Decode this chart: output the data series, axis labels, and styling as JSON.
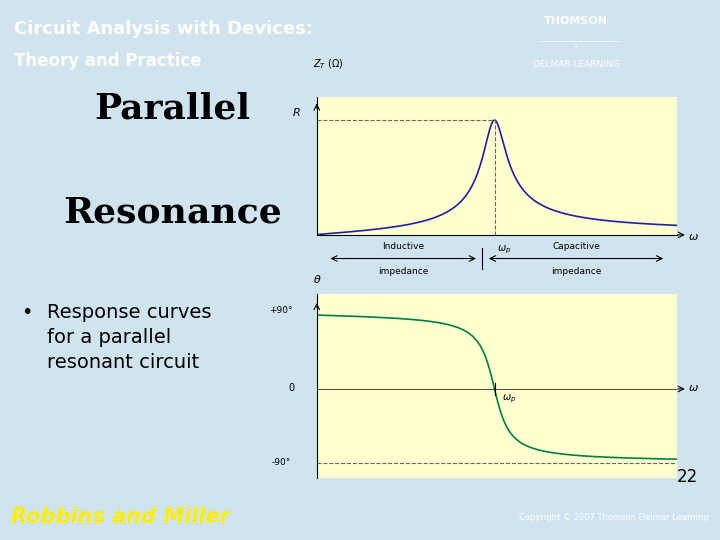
{
  "slide_bg": "#d0e4f0",
  "header_bg_left": "#2255cc",
  "header_bg_right": "#4488ee",
  "footer_bg": "#3366bb",
  "title_line1": "Parallel",
  "title_line2": "Resonance",
  "bullet_text": "Response curves\nfor a parallel\nresonant circuit",
  "page_number": "22",
  "plot_bg": "#ffffd0",
  "curve1_color": "#2020a0",
  "curve2_color": "#008040",
  "dashed_color": "#666666",
  "copyright_text": "Copyright © 2007 Thomson Delmar Learning",
  "header_line1": "Circuit Analysis with Devices:",
  "header_line2": "Theory and Practice",
  "footer_text": "Robbins and Miller",
  "thomson_text": "THOMSON",
  "delmar_text": "DELMAR LEARNING",
  "white": "#ffffff",
  "black": "#000000",
  "omega_p": 2.0,
  "Q": 8,
  "omega_min": 0.05,
  "omega_max": 4.0,
  "title_fontsize": 26,
  "bullet_fontsize": 14,
  "header_fontsize": 14,
  "footer_fontsize": 16
}
